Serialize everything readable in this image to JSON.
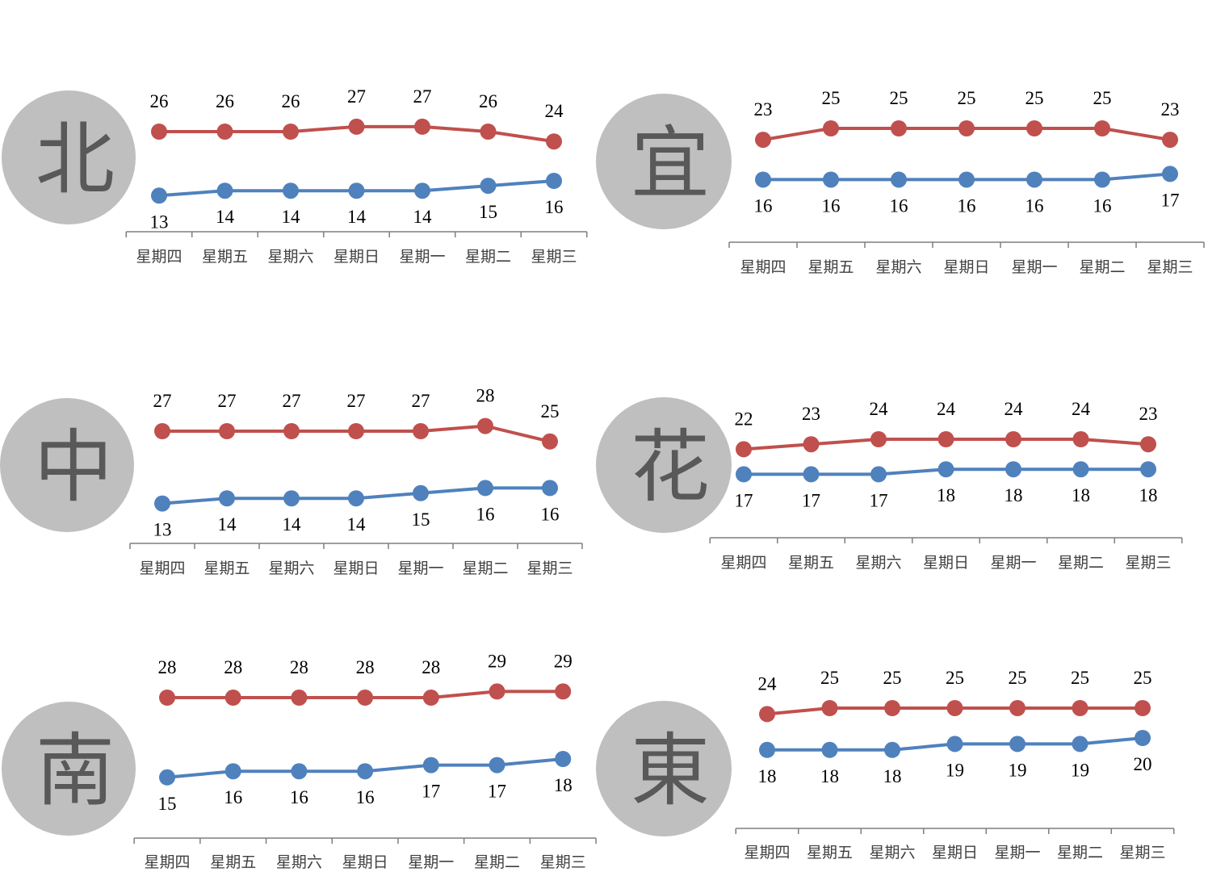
{
  "colors": {
    "high": "#c0504d",
    "low": "#4f81bd",
    "badge": "#bfbfbf"
  },
  "chart_data": [
    {
      "type": "line",
      "region": "北",
      "categories": [
        "星期四",
        "星期五",
        "星期六",
        "星期日",
        "星期一",
        "星期二",
        "星期三"
      ],
      "series": [
        {
          "values": [
            26,
            26,
            26,
            27,
            27,
            26,
            24
          ]
        },
        {
          "values": [
            13,
            14,
            14,
            14,
            14,
            15,
            16
          ]
        }
      ]
    },
    {
      "type": "line",
      "region": "宜",
      "categories": [
        "星期四",
        "星期五",
        "星期六",
        "星期日",
        "星期一",
        "星期二",
        "星期三"
      ],
      "series": [
        {
          "values": [
            23,
            25,
            25,
            25,
            25,
            25,
            23
          ]
        },
        {
          "values": [
            16,
            16,
            16,
            16,
            16,
            16,
            17
          ]
        }
      ]
    },
    {
      "type": "line",
      "region": "中",
      "categories": [
        "星期四",
        "星期五",
        "星期六",
        "星期日",
        "星期一",
        "星期二",
        "星期三"
      ],
      "series": [
        {
          "values": [
            27,
            27,
            27,
            27,
            27,
            28,
            25
          ]
        },
        {
          "values": [
            13,
            14,
            14,
            14,
            15,
            16,
            16
          ]
        }
      ]
    },
    {
      "type": "line",
      "region": "花",
      "categories": [
        "星期四",
        "星期五",
        "星期六",
        "星期日",
        "星期一",
        "星期二",
        "星期三"
      ],
      "series": [
        {
          "values": [
            22,
            23,
            24,
            24,
            24,
            24,
            23
          ]
        },
        {
          "values": [
            17,
            17,
            17,
            18,
            18,
            18,
            18
          ]
        }
      ]
    },
    {
      "type": "line",
      "region": "南",
      "categories": [
        "星期四",
        "星期五",
        "星期六",
        "星期日",
        "星期一",
        "星期二",
        "星期三"
      ],
      "series": [
        {
          "values": [
            28,
            28,
            28,
            28,
            28,
            29,
            29
          ]
        },
        {
          "values": [
            15,
            16,
            16,
            16,
            17,
            17,
            18
          ]
        }
      ]
    },
    {
      "type": "line",
      "region": "東",
      "categories": [
        "星期四",
        "星期五",
        "星期六",
        "星期日",
        "星期一",
        "星期二",
        "星期三"
      ],
      "series": [
        {
          "values": [
            24,
            25,
            25,
            25,
            25,
            25,
            25
          ]
        },
        {
          "values": [
            18,
            18,
            18,
            19,
            19,
            19,
            20
          ]
        }
      ]
    }
  ]
}
